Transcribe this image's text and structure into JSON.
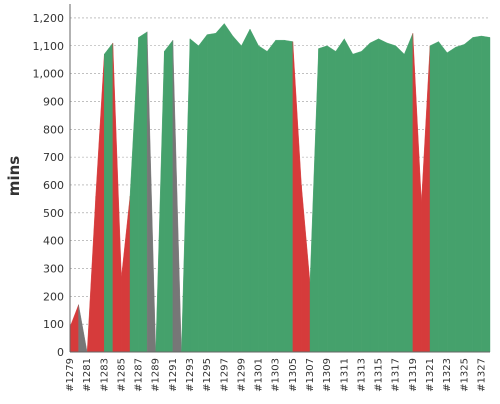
{
  "chart_data": {
    "type": "area",
    "ylabel": "mins",
    "xlabel": "",
    "title": "",
    "ylim": [
      0,
      1250
    ],
    "yticks": [
      0,
      100,
      200,
      300,
      400,
      500,
      600,
      700,
      800,
      900,
      1000,
      1100,
      1200
    ],
    "ytick_labels": [
      "0",
      "100",
      "200",
      "300",
      "400",
      "500",
      "600",
      "700",
      "800",
      "900",
      "1,000",
      "1,100",
      "1,200"
    ],
    "xtick_labels": [
      "#1279",
      "#1281",
      "#1283",
      "#1285",
      "#1287",
      "#1289",
      "#1291",
      "#1293",
      "#1295",
      "#1297",
      "#1299",
      "#1301",
      "#1303",
      "#1305",
      "#1307",
      "#1309",
      "#1311",
      "#1313",
      "#1315",
      "#1317",
      "#1319",
      "#1321",
      "#1323",
      "#1325",
      "#1327"
    ],
    "grid": true,
    "colors": {
      "success": "#45a16c",
      "failure": "#d63b3b",
      "aborted": "#777777"
    },
    "builds": [
      {
        "build": 1279,
        "value": 90,
        "status": "failure"
      },
      {
        "build": 1280,
        "value": 170,
        "status": "failure"
      },
      {
        "build": 1281,
        "value": 0,
        "status": "aborted"
      },
      {
        "build": 1282,
        "value": 560,
        "status": "failure"
      },
      {
        "build": 1283,
        "value": 1070,
        "status": "failure"
      },
      {
        "build": 1284,
        "value": 1110,
        "status": "success"
      },
      {
        "build": 1285,
        "value": 270,
        "status": "failure"
      },
      {
        "build": 1286,
        "value": 560,
        "status": "failure"
      },
      {
        "build": 1287,
        "value": 1130,
        "status": "success"
      },
      {
        "build": 1288,
        "value": 1150,
        "status": "success"
      },
      {
        "build": 1289,
        "value": 0,
        "status": "aborted"
      },
      {
        "build": 1290,
        "value": 1080,
        "status": "success"
      },
      {
        "build": 1291,
        "value": 1120,
        "status": "success"
      },
      {
        "build": 1292,
        "value": 0,
        "status": "aborted"
      },
      {
        "build": 1293,
        "value": 1125,
        "status": "success"
      },
      {
        "build": 1294,
        "value": 1100,
        "status": "success"
      },
      {
        "build": 1295,
        "value": 1140,
        "status": "success"
      },
      {
        "build": 1296,
        "value": 1145,
        "status": "success"
      },
      {
        "build": 1297,
        "value": 1180,
        "status": "success"
      },
      {
        "build": 1298,
        "value": 1135,
        "status": "success"
      },
      {
        "build": 1299,
        "value": 1100,
        "status": "success"
      },
      {
        "build": 1300,
        "value": 1160,
        "status": "success"
      },
      {
        "build": 1301,
        "value": 1100,
        "status": "success"
      },
      {
        "build": 1302,
        "value": 1080,
        "status": "success"
      },
      {
        "build": 1303,
        "value": 1120,
        "status": "success"
      },
      {
        "build": 1304,
        "value": 1120,
        "status": "success"
      },
      {
        "build": 1305,
        "value": 1115,
        "status": "success"
      },
      {
        "build": 1306,
        "value": 600,
        "status": "failure"
      },
      {
        "build": 1307,
        "value": 250,
        "status": "failure"
      },
      {
        "build": 1308,
        "value": 1090,
        "status": "success"
      },
      {
        "build": 1309,
        "value": 1100,
        "status": "success"
      },
      {
        "build": 1310,
        "value": 1080,
        "status": "success"
      },
      {
        "build": 1311,
        "value": 1125,
        "status": "success"
      },
      {
        "build": 1312,
        "value": 1070,
        "status": "success"
      },
      {
        "build": 1313,
        "value": 1080,
        "status": "success"
      },
      {
        "build": 1314,
        "value": 1110,
        "status": "success"
      },
      {
        "build": 1315,
        "value": 1125,
        "status": "success"
      },
      {
        "build": 1316,
        "value": 1110,
        "status": "success"
      },
      {
        "build": 1317,
        "value": 1100,
        "status": "success"
      },
      {
        "build": 1318,
        "value": 1070,
        "status": "success"
      },
      {
        "build": 1319,
        "value": 1145,
        "status": "success"
      },
      {
        "build": 1320,
        "value": 540,
        "status": "failure"
      },
      {
        "build": 1321,
        "value": 1100,
        "status": "failure"
      },
      {
        "build": 1322,
        "value": 1115,
        "status": "success"
      },
      {
        "build": 1323,
        "value": 1075,
        "status": "success"
      },
      {
        "build": 1324,
        "value": 1095,
        "status": "success"
      },
      {
        "build": 1325,
        "value": 1105,
        "status": "success"
      },
      {
        "build": 1326,
        "value": 1130,
        "status": "success"
      },
      {
        "build": 1327,
        "value": 1135,
        "status": "success"
      },
      {
        "build": 1328,
        "value": 1130,
        "status": "success"
      }
    ]
  }
}
